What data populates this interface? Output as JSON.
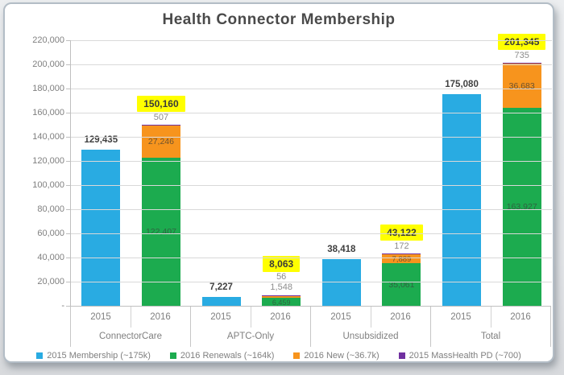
{
  "title": "Health Connector Membership",
  "colors": {
    "membership_2015": "#29abe2",
    "renewals_2016": "#1cab4f",
    "new_2016": "#f7941d",
    "masshealth_2015": "#7030a0",
    "highlight": "#ffff00"
  },
  "chart_data": {
    "type": "bar",
    "subtype": "grouped-stacked",
    "title": "Health Connector Membership",
    "ylim": [
      0,
      220000
    ],
    "ytick_step": 20000,
    "ytick_labels": [
      "-",
      "20,000",
      "40,000",
      "60,000",
      "80,000",
      "100,000",
      "120,000",
      "140,000",
      "160,000",
      "180,000",
      "200,000",
      "220,000"
    ],
    "grid": true,
    "legend_position": "bottom",
    "groups": [
      {
        "label": "ConnectorCare",
        "bars": [
          {
            "year": "2015",
            "type": "single",
            "series": "membership_2015",
            "value": 129435,
            "label": "129,435"
          },
          {
            "year": "2016",
            "type": "stacked",
            "total": 150160,
            "total_label": "150,160",
            "segments": [
              {
                "series": "renewals_2016",
                "value": 122407,
                "label": "122,407"
              },
              {
                "series": "new_2016",
                "value": 27246,
                "label": "27,246"
              },
              {
                "series": "masshealth_2015",
                "value": 507,
                "label": "507"
              }
            ]
          }
        ]
      },
      {
        "label": "APTC-Only",
        "bars": [
          {
            "year": "2015",
            "type": "single",
            "series": "membership_2015",
            "value": 7227,
            "label": "7,227"
          },
          {
            "year": "2016",
            "type": "stacked",
            "total": 8063,
            "total_label": "8,063",
            "segments": [
              {
                "series": "renewals_2016",
                "value": 6459,
                "label": "6,459"
              },
              {
                "series": "new_2016",
                "value": 1548,
                "label": "1,548"
              },
              {
                "series": "masshealth_2015",
                "value": 56,
                "label": "56"
              }
            ]
          }
        ]
      },
      {
        "label": "Unsubsidized",
        "bars": [
          {
            "year": "2015",
            "type": "single",
            "series": "membership_2015",
            "value": 38418,
            "label": "38,418"
          },
          {
            "year": "2016",
            "type": "stacked",
            "total": 43122,
            "total_label": "43,122",
            "segments": [
              {
                "series": "renewals_2016",
                "value": 35061,
                "label": "35,061"
              },
              {
                "series": "new_2016",
                "value": 7889,
                "label": "7,889"
              },
              {
                "series": "masshealth_2015",
                "value": 172,
                "label": "172"
              }
            ]
          }
        ]
      },
      {
        "label": "Total",
        "bars": [
          {
            "year": "2015",
            "type": "single",
            "series": "membership_2015",
            "value": 175080,
            "label": "175,080"
          },
          {
            "year": "2016",
            "type": "stacked",
            "total": 201345,
            "total_label": "201,345",
            "segments": [
              {
                "series": "renewals_2016",
                "value": 163927,
                "label": "163,927"
              },
              {
                "series": "new_2016",
                "value": 36683,
                "label": "36,683"
              },
              {
                "series": "masshealth_2015",
                "value": 735,
                "label": "735"
              }
            ]
          }
        ]
      }
    ],
    "legend": [
      {
        "series": "membership_2015",
        "label": "2015 Membership (~175k)"
      },
      {
        "series": "renewals_2016",
        "label": "2016 Renewals (~164k)"
      },
      {
        "series": "new_2016",
        "label": "2016 New (~36.7k)"
      },
      {
        "series": "masshealth_2015",
        "label": "2015 MassHealth PD (~700)"
      }
    ]
  }
}
